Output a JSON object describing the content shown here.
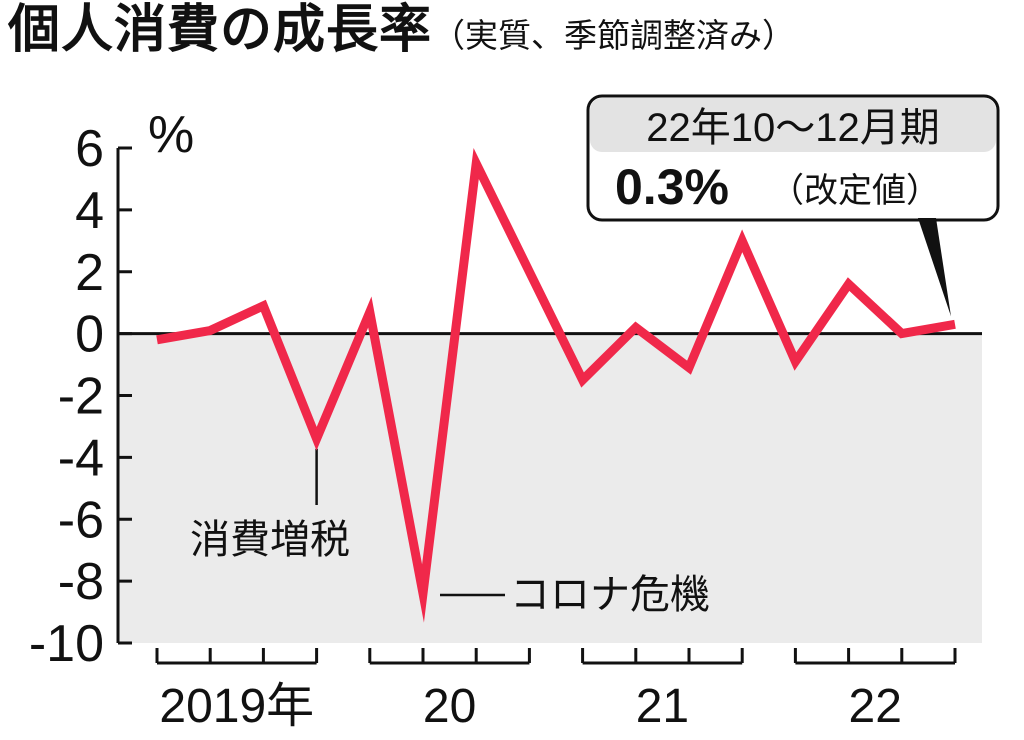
{
  "title": {
    "main": "個人消費の成長率",
    "sub": "（実質、季節調整済み）"
  },
  "chart_data": {
    "type": "line",
    "unit_label": "%",
    "ylim": [
      -10,
      6
    ],
    "y_ticks": [
      6,
      4,
      2,
      0,
      -2,
      -4,
      -6,
      -8,
      -10
    ],
    "y_tick_labels": [
      "6",
      "4",
      "2",
      "0",
      "-2",
      "-4",
      "-6",
      "-8",
      "-10"
    ],
    "years": [
      {
        "label": "2019年",
        "quarters": 4
      },
      {
        "label": "20",
        "quarters": 4
      },
      {
        "label": "21",
        "quarters": 4
      },
      {
        "label": "22",
        "quarters": 4
      }
    ],
    "series": [
      {
        "color": "#f0284a",
        "values": [
          -0.2,
          0.1,
          0.9,
          -3.4,
          0.7,
          -8.4,
          5.5,
          2.0,
          -1.5,
          0.2,
          -1.1,
          3.0,
          -0.9,
          1.6,
          0.0,
          0.3
        ]
      }
    ],
    "annotations": [
      {
        "text": "消費増税",
        "index": 3
      },
      {
        "text": "コロナ危機",
        "index": 5
      }
    ],
    "callout": {
      "line1": "22年10〜12月期",
      "value": "0.3%",
      "note": "（改定値）",
      "index": 15
    },
    "negative_region_shaded": true
  }
}
